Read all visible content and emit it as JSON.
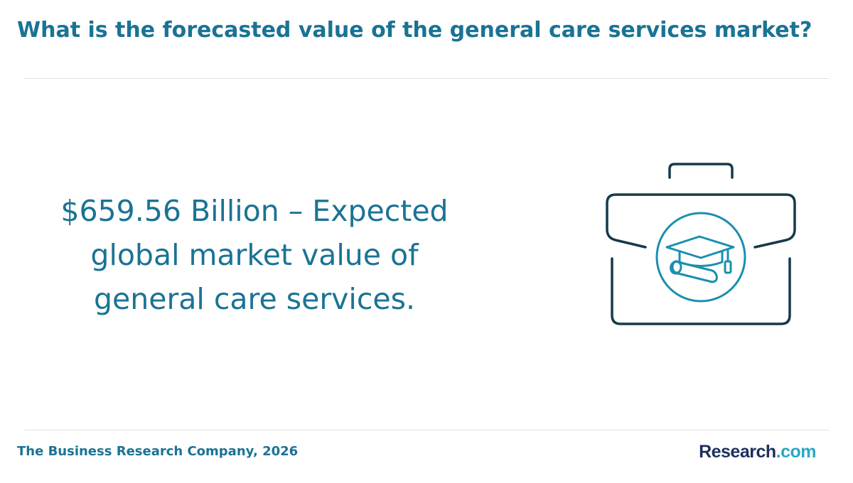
{
  "header": {
    "title": "What is the forecasted value of the general care services market?"
  },
  "main": {
    "headline": "$659.56 Billion – Expected global market value of general care services.",
    "icon": "briefcase-graduation-cap-diploma-icon"
  },
  "footer": {
    "source": "The Business Research Company, 2026",
    "logo_main": "Research",
    "logo_tld": ".com"
  },
  "colors": {
    "accent": "#1a7394",
    "icon_dark": "#17394a",
    "icon_teal": "#1a8fae",
    "logo_navy": "#1c2f5e",
    "logo_cyan": "#2aa7c6"
  }
}
